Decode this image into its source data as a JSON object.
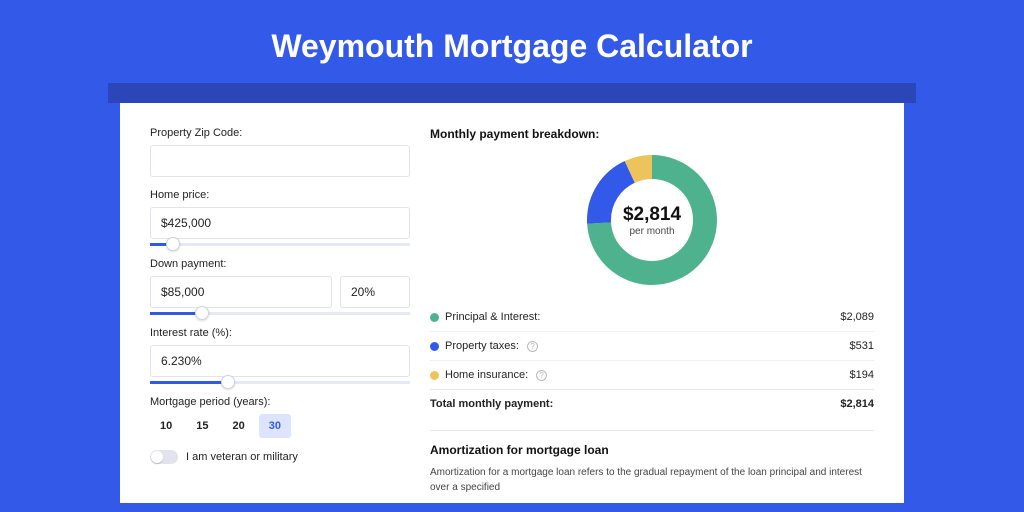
{
  "page": {
    "title": "Weymouth Mortgage Calculator",
    "background_color": "#3359e8",
    "header_band_color": "#2b46b8"
  },
  "form": {
    "zip": {
      "label": "Property Zip Code:",
      "value": ""
    },
    "home_price": {
      "label": "Home price:",
      "value": "$425,000",
      "slider_pct": 9
    },
    "down_payment": {
      "label": "Down payment:",
      "value": "$85,000",
      "pct_value": "20%",
      "slider_pct": 20
    },
    "interest": {
      "label": "Interest rate (%):",
      "value": "6.230%",
      "slider_pct": 30
    },
    "period": {
      "label": "Mortgage period (years):",
      "options": [
        "10",
        "15",
        "20",
        "30"
      ],
      "selected": "30"
    },
    "veteran": {
      "label": "I am veteran or military",
      "on": false
    }
  },
  "breakdown": {
    "title": "Monthly payment breakdown:",
    "donut": {
      "amount": "$2,814",
      "sub": "per month",
      "slices": [
        {
          "label": "Principal & Interest:",
          "value": "$2,089",
          "color": "#4eb28e",
          "pct": 74
        },
        {
          "label": "Property taxes:",
          "value": "$531",
          "color": "#3359e8",
          "pct": 19,
          "info": true
        },
        {
          "label": "Home insurance:",
          "value": "$194",
          "color": "#ecc45b",
          "pct": 7,
          "info": true
        }
      ],
      "size": 130,
      "thickness": 24
    },
    "total": {
      "label": "Total monthly payment:",
      "value": "$2,814"
    }
  },
  "amort": {
    "title": "Amortization for mortgage loan",
    "body": "Amortization for a mortgage loan refers to the gradual repayment of the loan principal and interest over a specified"
  }
}
